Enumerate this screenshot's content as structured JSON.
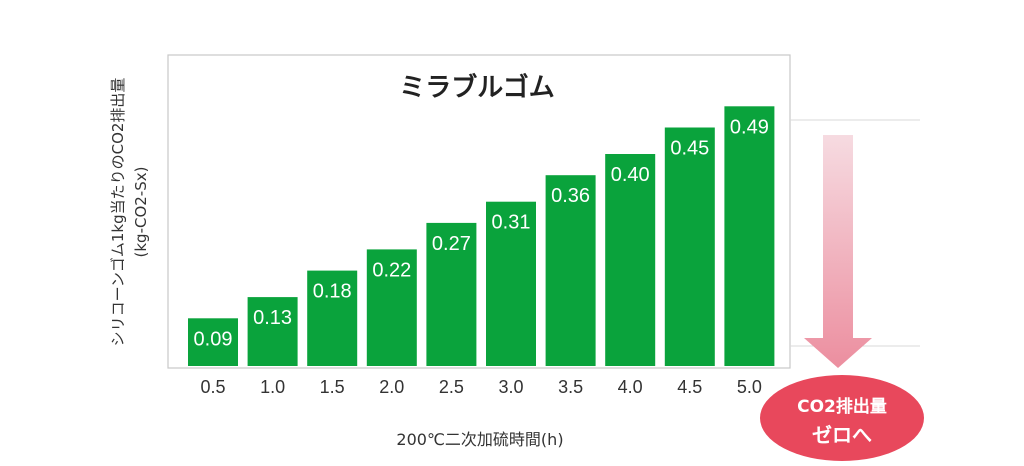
{
  "chart_data": {
    "type": "bar",
    "title": "ミラブルゴム",
    "ylabel_line1": "シリコーンゴム1kg当たりのCO2排出量",
    "ylabel_line2": "(kg-CO2-Sx)",
    "xlabel": "200℃二次加硫時間(h)",
    "categories": [
      "0.5",
      "1.0",
      "1.5",
      "2.0",
      "2.5",
      "3.0",
      "3.5",
      "4.0",
      "4.5",
      "5.0"
    ],
    "values": [
      0.09,
      0.13,
      0.18,
      0.22,
      0.27,
      0.31,
      0.36,
      0.4,
      0.45,
      0.49
    ],
    "value_labels": [
      "0.09",
      "0.13",
      "0.18",
      "0.22",
      "0.27",
      "0.31",
      "0.36",
      "0.40",
      "0.45",
      "0.49"
    ],
    "ylim": [
      0,
      0.5
    ],
    "grid": false,
    "legend": "none"
  },
  "badge": {
    "line1": "CO2排出量",
    "line2": "ゼロへ"
  },
  "colors": {
    "bar": "#0aa33c",
    "plot_border": "#c8c8c8",
    "arrow_top": "#f6dbe1",
    "arrow_bottom": "#ec8e9f",
    "badge": "#e8485c"
  }
}
